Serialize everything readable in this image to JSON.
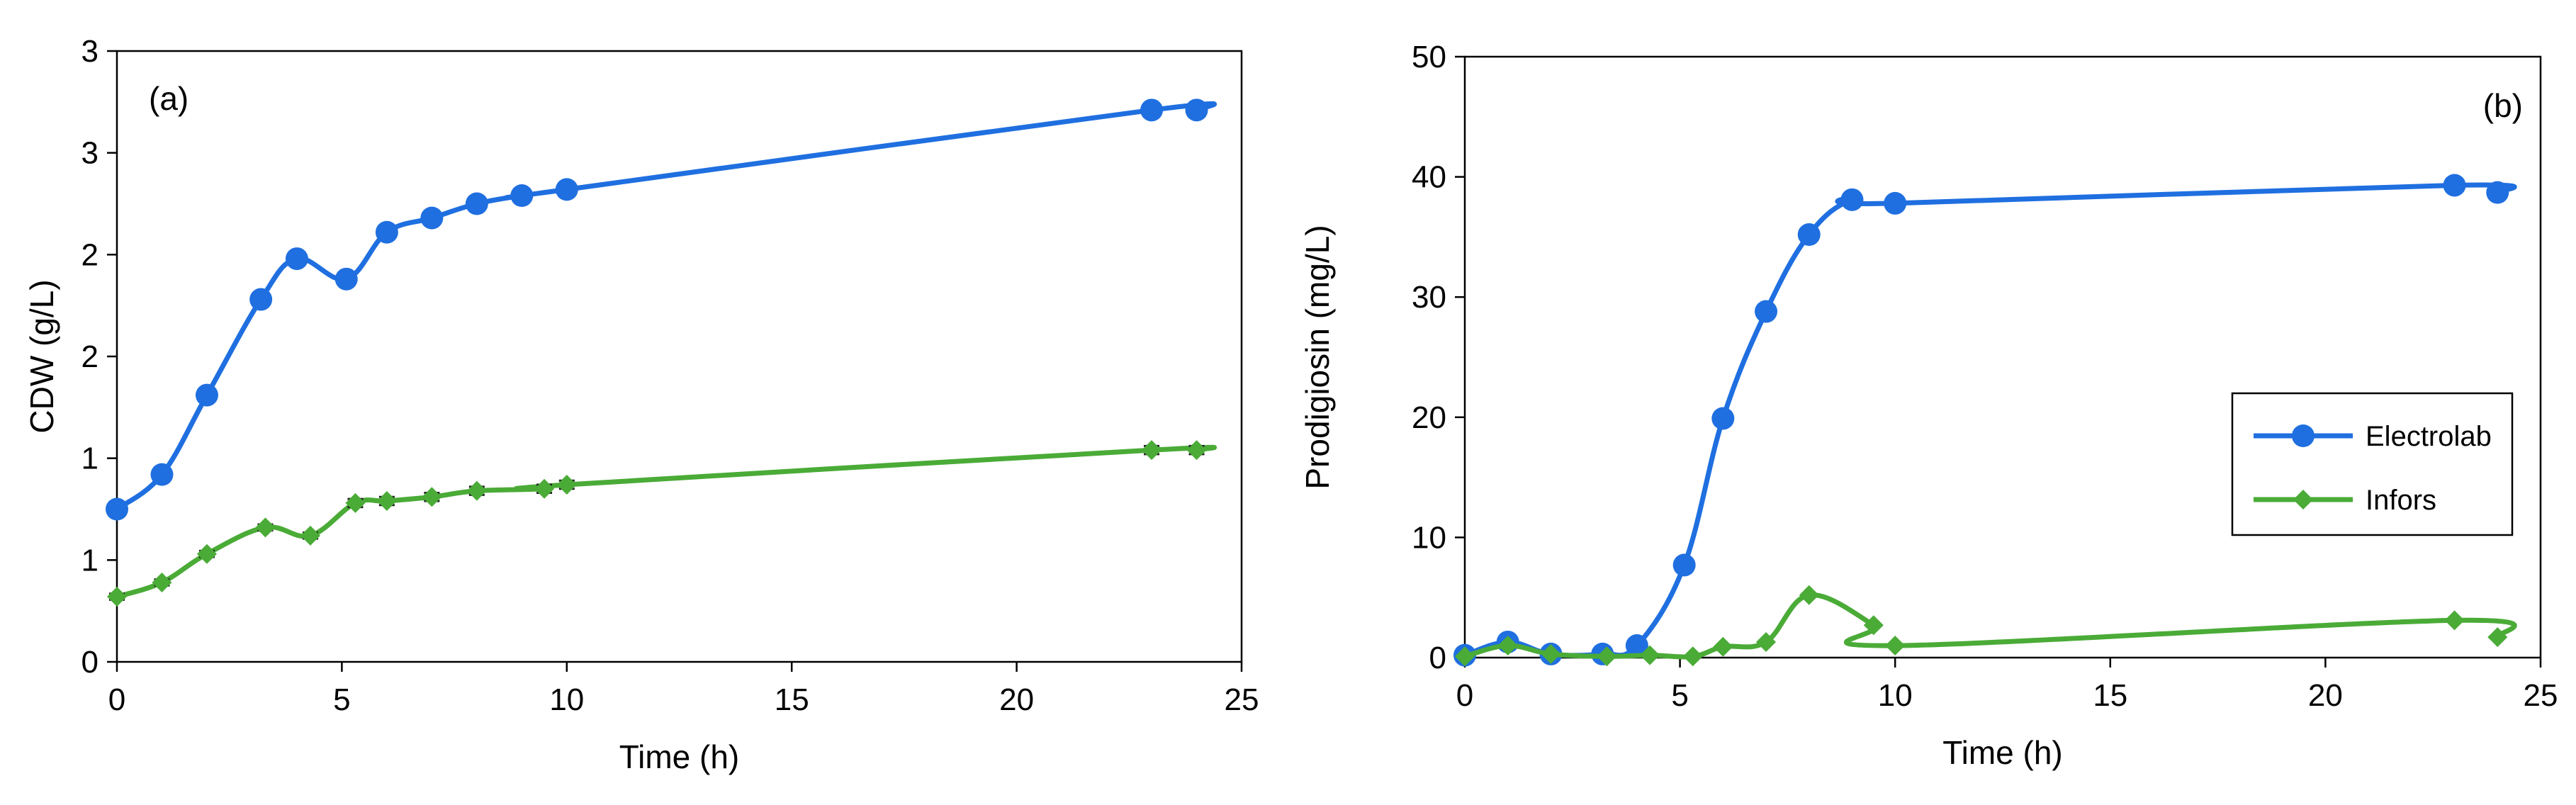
{
  "chart_data": [
    {
      "panel_label": "(a)",
      "type": "line",
      "xlabel": "Time (h)",
      "ylabel": "CDW (g/L)",
      "xlim": [
        0,
        25
      ],
      "ylim": [
        0,
        3
      ],
      "x_ticks": [
        0,
        5,
        10,
        15,
        20,
        25
      ],
      "y_ticks": [
        0,
        0.5,
        1,
        1.5,
        2,
        2.5,
        3
      ],
      "y_tick_labels": [
        "0",
        "1",
        "1",
        "2",
        "2",
        "3",
        "3"
      ],
      "grid": false,
      "legend": "none",
      "series": [
        {
          "color": "#1f6fe0",
          "marker": "circle",
          "x": [
            0,
            1,
            2,
            3.2,
            4,
            5.1,
            6,
            7,
            8,
            9,
            10,
            23,
            24
          ],
          "y": [
            0.75,
            0.92,
            1.31,
            1.78,
            1.98,
            1.88,
            2.11,
            2.18,
            2.25,
            2.29,
            2.32,
            2.71,
            2.71
          ]
        },
        {
          "color": "#4aab37",
          "marker": "diamond",
          "error_bars": true,
          "x": [
            0,
            1,
            2,
            3.3,
            4.3,
            5.3,
            6,
            7,
            8,
            9.5,
            10,
            23,
            24
          ],
          "y": [
            0.32,
            0.39,
            0.53,
            0.66,
            0.62,
            0.78,
            0.79,
            0.81,
            0.84,
            0.85,
            0.87,
            1.04,
            1.04
          ],
          "err": [
            0.015,
            0.015,
            0.015,
            0.015,
            0.015,
            0.02,
            0.02,
            0.02,
            0.02,
            0.02,
            0.02,
            0.02,
            0.02
          ]
        }
      ]
    },
    {
      "panel_label": "(b)",
      "type": "line",
      "xlabel": "Time (h)",
      "ylabel": "Prodigiosin (mg/L)",
      "xlim": [
        0,
        25
      ],
      "ylim": [
        0,
        50
      ],
      "x_ticks": [
        0,
        5,
        10,
        15,
        20,
        25
      ],
      "y_ticks": [
        0,
        10,
        20,
        30,
        40,
        50
      ],
      "y_tick_labels": [
        "0",
        "10",
        "20",
        "30",
        "40",
        "50"
      ],
      "grid": false,
      "legend": "right",
      "series": [
        {
          "name": "Electrolab",
          "color": "#1f6fe0",
          "marker": "circle",
          "x": [
            0,
            1,
            2,
            3.2,
            4,
            5.1,
            6,
            7,
            8,
            9,
            10,
            23,
            24
          ],
          "y": [
            0.2,
            1.3,
            0.3,
            0.3,
            1,
            7.7,
            19.9,
            28.8,
            35.2,
            38.1,
            37.8,
            39.3,
            38.7
          ]
        },
        {
          "name": "Infors",
          "color": "#4aab37",
          "marker": "diamond",
          "x": [
            0,
            1,
            2,
            3.3,
            4.3,
            5.3,
            6,
            7,
            8,
            9.5,
            10,
            23,
            24
          ],
          "y": [
            0.1,
            1.0,
            0.3,
            0.1,
            0.2,
            0.1,
            0.9,
            1.3,
            5.2,
            2.7,
            1.0,
            3.1,
            1.7
          ]
        }
      ]
    }
  ]
}
